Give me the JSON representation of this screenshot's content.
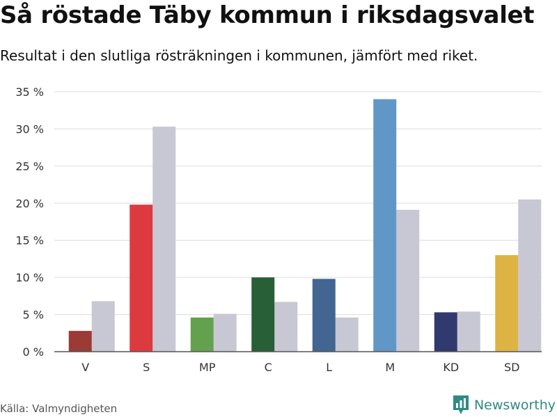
{
  "page": {
    "title": "Så röstade Täby kommun i riksdagsvalet",
    "subtitle": "Resultat i den slutliga rösträkningen i kommunen, jämfört med riket.",
    "source": "Källa: Valmyndigheten",
    "brand": {
      "name": "Newsworthy",
      "icon": "bar-chart-logo-icon",
      "color": "#2f8a84"
    }
  },
  "chart_data": {
    "type": "bar",
    "categories": [
      "V",
      "S",
      "MP",
      "C",
      "L",
      "M",
      "KD",
      "SD"
    ],
    "series": [
      {
        "values": [
          2.8,
          19.8,
          4.6,
          10.0,
          9.8,
          34.0,
          5.3,
          13.0
        ],
        "colors": [
          "#9b3b36",
          "#dd3a40",
          "#64a14f",
          "#285f36",
          "#426691",
          "#6197c6",
          "#313a6f",
          "#ddb443"
        ]
      },
      {
        "values": [
          6.8,
          30.3,
          5.1,
          6.7,
          4.6,
          19.1,
          5.4,
          20.5
        ],
        "color": "#c8c7d4"
      }
    ],
    "ylim": [
      0,
      35
    ],
    "yticks": [
      0,
      5,
      10,
      15,
      20,
      25,
      30,
      35
    ],
    "ytick_suffix": " %",
    "grid": true,
    "legend": "none",
    "xlabel": "",
    "ylabel": ""
  }
}
